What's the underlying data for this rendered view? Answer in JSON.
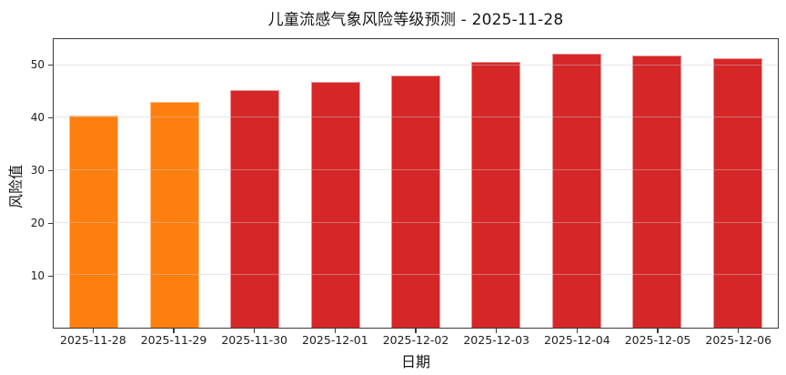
{
  "figure": {
    "title": "儿童流感气象风险等级预测 - 2025-11-28",
    "xlabel": "日期",
    "ylabel": "风险值"
  },
  "chart_data": {
    "type": "bar",
    "title": "儿童流感气象风险等级预测 - 2025-11-28",
    "xlabel": "日期",
    "ylabel": "风险值",
    "categories": [
      "2025-11-28",
      "2025-11-29",
      "2025-11-30",
      "2025-12-01",
      "2025-12-02",
      "2025-12-03",
      "2025-12-04",
      "2025-12-05",
      "2025-12-06"
    ],
    "values": [
      40.5,
      43.0,
      45.2,
      46.8,
      48.0,
      50.6,
      52.2,
      51.8,
      51.4
    ],
    "bar_colors": [
      "#ff7f0e",
      "#ff7f0e",
      "#d62728",
      "#d62728",
      "#d62728",
      "#d62728",
      "#d62728",
      "#d62728",
      "#d62728"
    ],
    "color_legend": {
      "orange_low_risk": "#ff7f0e",
      "red_high_risk": "#d62728"
    },
    "ylim": [
      0,
      55
    ],
    "yticks": [
      10,
      20,
      30,
      40,
      50
    ],
    "grid": "horizontal",
    "legend": "none"
  }
}
